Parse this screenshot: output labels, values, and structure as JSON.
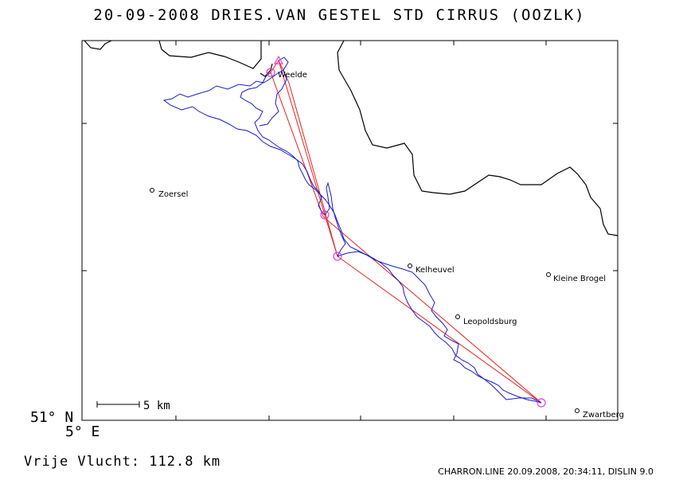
{
  "title": "20-09-2008   DRIES.VAN GESTEL   STD CIRRUS (OOZLK)",
  "axis": {
    "lat_label": "51° N",
    "lon_label": "5° E"
  },
  "scale_bar": {
    "label": "5 km"
  },
  "distance": "Vrije Vlucht:  112.8 km",
  "footer": "CHARRON.LINE 20.09.2008, 20:34:11, DISLIN 9.0",
  "places": [
    {
      "name": "Weelde"
    },
    {
      "name": "Zoersel"
    },
    {
      "name": "Kelheuvel"
    },
    {
      "name": "Kleine Brogel"
    },
    {
      "name": "Leopoldsburg"
    },
    {
      "name": "Zwartberg"
    }
  ],
  "colors": {
    "track": "#1a1acd",
    "task": "#e8231f",
    "turnpoint": "#e040e0",
    "border": "#000000"
  }
}
